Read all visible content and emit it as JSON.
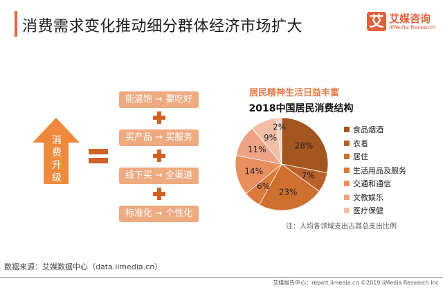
{
  "header": {
    "title": "消费需求变化推动细分群体经济市场扩大",
    "accent": "#e8683a"
  },
  "logo": {
    "glyph": "艾",
    "name_cn": "艾媒咨询",
    "name_en": "iiMedia Research"
  },
  "left": {
    "arrow_label": [
      "消",
      "费",
      "升",
      "级"
    ],
    "arrow_icon": "up-arrow-icon",
    "equals_icon": "equals-icon",
    "plus_icon": "plus-icon",
    "boxes": [
      "能温饱 → 要吃好",
      "买产品 → 买服务",
      "线下买 → 全渠道",
      "标准化 → 个性化"
    ],
    "colors": {
      "arrow": "#ef8a3d",
      "operator": "#cf6225",
      "box": "#eeaa80"
    }
  },
  "chart_data": {
    "type": "pie",
    "subtitle": "居民精神生活日益丰富",
    "title": "2018中国居民消费结构",
    "categories": [
      "食品烟酒",
      "衣着",
      "居住",
      "生活用品及服务",
      "交通和通信",
      "文教娱乐",
      "医疗保健",
      ""
    ],
    "values": [
      28,
      7,
      23,
      6,
      14,
      11,
      9,
      2
    ],
    "data_labels": [
      "28%",
      "7%",
      "23%",
      "6%",
      "14%",
      "11%",
      "9%",
      "2%"
    ],
    "colors": [
      "#a3561f",
      "#b8622a",
      "#cf7030",
      "#dc7a3c",
      "#e98e5f",
      "#eea386",
      "#f3bea8",
      "#f6d3c5"
    ],
    "start": "12 o'clock, clockwise",
    "legend_placement": "right",
    "note": "注：人均各领域支出占其总支出比例"
  },
  "footer": {
    "source": "数据来源：艾媒数据中心（data.iimedia.cn）",
    "copyright": "艾媒报告中心：report.iimedia.cn  ©2019  iiMedia Research Inc"
  }
}
